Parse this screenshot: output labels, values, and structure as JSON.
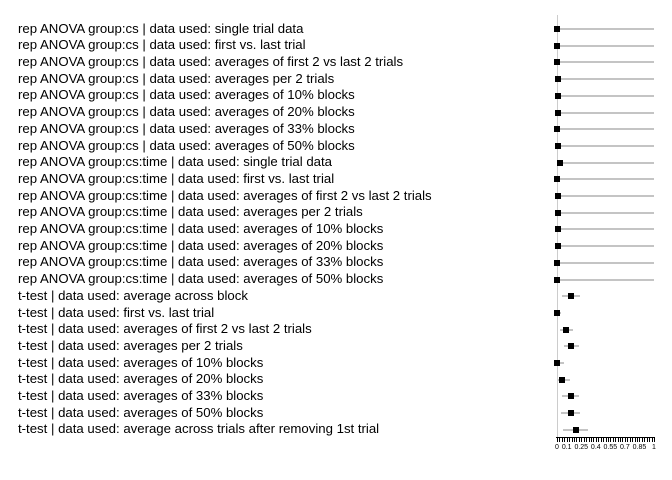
{
  "figure": {
    "background": "#ffffff",
    "marker_color": "#000000",
    "ci_line_color": "#c4c4c4",
    "reference_line_color": "#cccccc"
  },
  "chart_data": {
    "type": "scatter",
    "subtype": "dot-plot-with-error-bars",
    "title": "",
    "xlabel": "",
    "ylabel": "",
    "xlim": [
      0,
      1
    ],
    "grid": false,
    "legend": false,
    "reference_line_x": 0,
    "minor_tick_step": 0.025,
    "x_ticks_labeled": [
      {
        "v": 0,
        "t": "0"
      },
      {
        "v": 0.1,
        "t": "0.1"
      },
      {
        "v": 0.25,
        "t": "0.25"
      },
      {
        "v": 0.4,
        "t": "0.4"
      },
      {
        "v": 0.55,
        "t": "0.55"
      },
      {
        "v": 0.7,
        "t": "0.7"
      },
      {
        "v": 0.85,
        "t": "0.85"
      },
      {
        "v": 1,
        "t": "1"
      }
    ],
    "rows": [
      {
        "label": "rep ANOVA group:cs | data used: single trial data",
        "value": 0.005,
        "ci_low": 0.0,
        "ci_high": 1.0
      },
      {
        "label": "rep ANOVA group:cs | data used: first vs. last trial",
        "value": 0.005,
        "ci_low": 0.0,
        "ci_high": 1.0
      },
      {
        "label": "rep ANOVA group:cs | data used: averages of first 2 vs last 2 trials",
        "value": 0.005,
        "ci_low": 0.0,
        "ci_high": 1.0
      },
      {
        "label": "rep ANOVA group:cs | data used: averages per 2 trials",
        "value": 0.01,
        "ci_low": 0.0,
        "ci_high": 1.0
      },
      {
        "label": "rep ANOVA group:cs | data used: averages of 10% blocks",
        "value": 0.01,
        "ci_low": 0.0,
        "ci_high": 1.0
      },
      {
        "label": "rep ANOVA group:cs | data used: averages of 20% blocks",
        "value": 0.01,
        "ci_low": 0.0,
        "ci_high": 1.0
      },
      {
        "label": "rep ANOVA group:cs | data used: averages of 33% blocks",
        "value": 0.005,
        "ci_low": 0.0,
        "ci_high": 1.0
      },
      {
        "label": "rep ANOVA group:cs | data used: averages of 50% blocks",
        "value": 0.01,
        "ci_low": 0.0,
        "ci_high": 1.0
      },
      {
        "label": "rep ANOVA group:cs:time | data used: single trial data",
        "value": 0.03,
        "ci_low": 0.0,
        "ci_high": 1.0
      },
      {
        "label": "rep ANOVA group:cs:time | data used: first vs. last trial",
        "value": 0.005,
        "ci_low": 0.0,
        "ci_high": 1.0
      },
      {
        "label": "rep ANOVA group:cs:time | data used: averages of first 2 vs last 2 trials",
        "value": 0.01,
        "ci_low": 0.0,
        "ci_high": 1.0
      },
      {
        "label": "rep ANOVA group:cs:time | data used: averages per 2 trials",
        "value": 0.01,
        "ci_low": 0.0,
        "ci_high": 1.0
      },
      {
        "label": "rep ANOVA group:cs:time | data used: averages of 10% blocks",
        "value": 0.01,
        "ci_low": 0.0,
        "ci_high": 1.0
      },
      {
        "label": "rep ANOVA group:cs:time | data used: averages of 20% blocks",
        "value": 0.01,
        "ci_low": 0.0,
        "ci_high": 1.0
      },
      {
        "label": "rep ANOVA group:cs:time | data used: averages of 33% blocks",
        "value": 0.005,
        "ci_low": 0.0,
        "ci_high": 1.0
      },
      {
        "label": "rep ANOVA group:cs:time | data used: averages of 50% blocks",
        "value": 0.005,
        "ci_low": 0.0,
        "ci_high": 1.0
      },
      {
        "label": "t-test | data used: average across block",
        "value": 0.14,
        "ci_low": 0.05,
        "ci_high": 0.24
      },
      {
        "label": "t-test | data used: first vs. last trial",
        "value": 0.0,
        "ci_low": 0.0,
        "ci_high": 0.04
      },
      {
        "label": "t-test | data used: averages of first 2 vs last 2 trials",
        "value": 0.09,
        "ci_low": 0.03,
        "ci_high": 0.17
      },
      {
        "label": "t-test | data used: averages per 2 trials",
        "value": 0.14,
        "ci_low": 0.07,
        "ci_high": 0.23
      },
      {
        "label": "t-test | data used: averages of 10% blocks",
        "value": 0.005,
        "ci_low": 0.0,
        "ci_high": 0.07
      },
      {
        "label": "t-test | data used: averages of 20% blocks",
        "value": 0.05,
        "ci_low": 0.01,
        "ci_high": 0.13
      },
      {
        "label": "t-test | data used: averages of 33% blocks",
        "value": 0.14,
        "ci_low": 0.05,
        "ci_high": 0.23
      },
      {
        "label": "t-test | data used: averages of 50% blocks",
        "value": 0.14,
        "ci_low": 0.04,
        "ci_high": 0.24
      },
      {
        "label": "t-test | data used: average across trials after removing 1st trial",
        "value": 0.2,
        "ci_low": 0.06,
        "ci_high": 0.32
      }
    ]
  }
}
